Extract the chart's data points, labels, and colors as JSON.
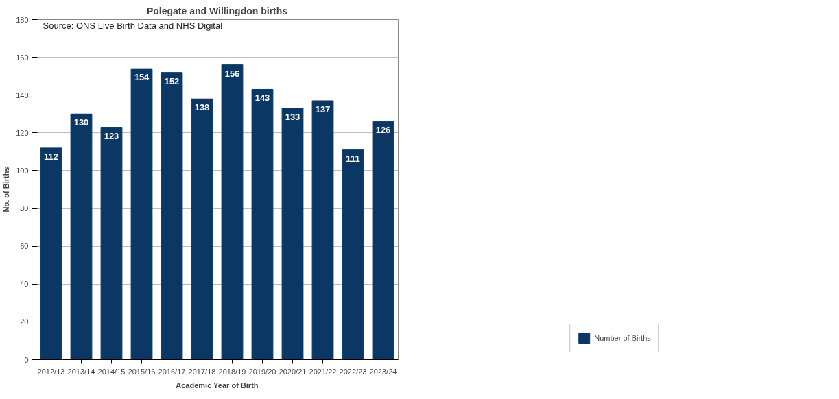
{
  "chart_data": {
    "type": "bar",
    "title": "Polegate and Willingdon births",
    "xlabel": "Academic Year of Birth",
    "ylabel": "No. of Births",
    "categories": [
      "2012/13",
      "2013/14",
      "2014/15",
      "2015/16",
      "2016/17",
      "2017/18",
      "2018/19",
      "2019/20",
      "2020/21",
      "2021/22",
      "2022/23",
      "2023/24"
    ],
    "series": [
      {
        "name": "Number of Births",
        "color": "#0b3764",
        "values": [
          112,
          130,
          123,
          154,
          152,
          138,
          156,
          143,
          133,
          137,
          111,
          126
        ]
      }
    ],
    "ylim": [
      0,
      180
    ],
    "yticks": [
      0,
      20,
      40,
      60,
      80,
      100,
      120,
      140,
      160,
      180
    ],
    "grid": "y",
    "legend": "bottom right",
    "data_labels": true,
    "annotations": [
      "Source: ONS Live Birth Data and NHS Digital"
    ]
  }
}
